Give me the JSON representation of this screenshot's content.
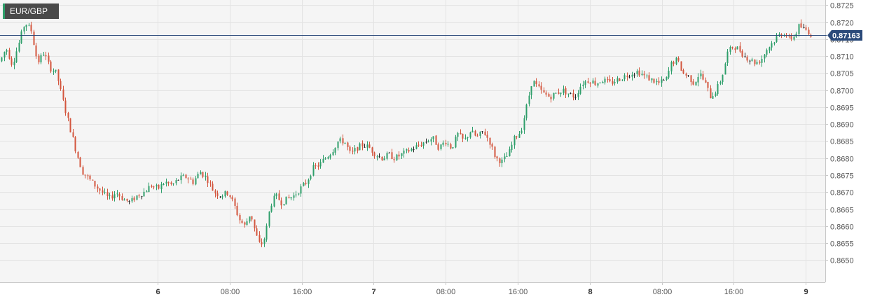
{
  "symbol": "EUR/GBP",
  "current_price_label": "0.87163",
  "colors": {
    "up": "#2e9e6a",
    "down": "#d3553d",
    "neutral": "#222222",
    "price_line": "#2b4a7a"
  },
  "chart_data": {
    "type": "candlestick",
    "title": "EUR/GBP",
    "current_price": 0.87163,
    "ylim": [
      0.86435,
      0.87265
    ],
    "y_ticks": [
      "0.8725",
      "0.8720",
      "0.8715",
      "0.8710",
      "0.8705",
      "0.8700",
      "0.8695",
      "0.8690",
      "0.8685",
      "0.8680",
      "0.8675",
      "0.8670",
      "0.8665",
      "0.8660",
      "0.8655",
      "0.8650"
    ],
    "x_ticks": [
      {
        "label": "6",
        "day": true
      },
      {
        "label": "08:00",
        "day": false
      },
      {
        "label": "16:00",
        "day": false
      },
      {
        "label": "7",
        "day": true
      },
      {
        "label": "08:00",
        "day": false
      },
      {
        "label": "16:00",
        "day": false
      },
      {
        "label": "8",
        "day": true
      },
      {
        "label": "08:00",
        "day": false
      },
      {
        "label": "16:00",
        "day": false
      },
      {
        "label": "9",
        "day": true
      }
    ],
    "grid": true,
    "interval": "15m",
    "path": [
      [
        0,
        0.87085
      ],
      [
        8,
        0.87125
      ],
      [
        17,
        0.87075
      ],
      [
        26,
        0.87135
      ],
      [
        35,
        0.872
      ],
      [
        44,
        0.87175
      ],
      [
        53,
        0.8708
      ],
      [
        62,
        0.8711
      ],
      [
        71,
        0.87065
      ],
      [
        80,
        0.8705
      ],
      [
        89,
        0.8697
      ],
      [
        98,
        0.869
      ],
      [
        108,
        0.8682
      ],
      [
        117,
        0.8676
      ],
      [
        126,
        0.8674
      ],
      [
        135,
        0.8672
      ],
      [
        145,
        0.867
      ],
      [
        155,
        0.8668
      ],
      [
        165,
        0.867
      ],
      [
        175,
        0.8668
      ],
      [
        185,
        0.8667
      ],
      [
        195,
        0.8669
      ],
      [
        205,
        0.867
      ],
      [
        215,
        0.8672
      ],
      [
        225,
        0.8671
      ],
      [
        235,
        0.8673
      ],
      [
        245,
        0.8672
      ],
      [
        255,
        0.8674
      ],
      [
        265,
        0.86745
      ],
      [
        275,
        0.8673
      ],
      [
        285,
        0.8676
      ],
      [
        295,
        0.8674
      ],
      [
        305,
        0.867
      ],
      [
        315,
        0.8669
      ],
      [
        325,
        0.867
      ],
      [
        333,
        0.86665
      ],
      [
        341,
        0.8662
      ],
      [
        349,
        0.866
      ],
      [
        357,
        0.8664
      ],
      [
        364,
        0.8658
      ],
      [
        371,
        0.8654
      ],
      [
        378,
        0.8657
      ],
      [
        385,
        0.8666
      ],
      [
        393,
        0.8669
      ],
      [
        401,
        0.8667
      ],
      [
        410,
        0.8668
      ],
      [
        419,
        0.8669
      ],
      [
        428,
        0.8671
      ],
      [
        437,
        0.8673
      ],
      [
        446,
        0.8677
      ],
      [
        455,
        0.8678
      ],
      [
        464,
        0.868
      ],
      [
        473,
        0.8682
      ],
      [
        482,
        0.8685
      ],
      [
        491,
        0.8685
      ],
      [
        500,
        0.8681
      ],
      [
        509,
        0.8683
      ],
      [
        518,
        0.8684
      ],
      [
        527,
        0.8683
      ],
      [
        536,
        0.8681
      ],
      [
        545,
        0.868
      ],
      [
        554,
        0.8681
      ],
      [
        563,
        0.868
      ],
      [
        572,
        0.8681
      ],
      [
        581,
        0.8682
      ],
      [
        590,
        0.8683
      ],
      [
        599,
        0.8684
      ],
      [
        608,
        0.8685
      ],
      [
        617,
        0.8686
      ],
      [
        626,
        0.8683
      ],
      [
        635,
        0.8685
      ],
      [
        644,
        0.8683
      ],
      [
        653,
        0.8687
      ],
      [
        662,
        0.8685
      ],
      [
        671,
        0.8688
      ],
      [
        680,
        0.8686
      ],
      [
        689,
        0.8688
      ],
      [
        698,
        0.8685
      ],
      [
        707,
        0.868
      ],
      [
        716,
        0.8679
      ],
      [
        725,
        0.8681
      ],
      [
        734,
        0.8686
      ],
      [
        743,
        0.8688
      ],
      [
        752,
        0.8696
      ],
      [
        759,
        0.8703
      ],
      [
        766,
        0.8701
      ],
      [
        775,
        0.8699
      ],
      [
        784,
        0.8698
      ],
      [
        793,
        0.8699
      ],
      [
        802,
        0.87
      ],
      [
        811,
        0.8699
      ],
      [
        820,
        0.8698
      ],
      [
        830,
        0.8702
      ],
      [
        840,
        0.8703
      ],
      [
        850,
        0.8702
      ],
      [
        860,
        0.8703
      ],
      [
        870,
        0.8702
      ],
      [
        880,
        0.8703
      ],
      [
        890,
        0.8704
      ],
      [
        900,
        0.8705
      ],
      [
        910,
        0.87055
      ],
      [
        920,
        0.8704
      ],
      [
        930,
        0.8703
      ],
      [
        940,
        0.8702
      ],
      [
        950,
        0.8703
      ],
      [
        958,
        0.8708
      ],
      [
        966,
        0.8709
      ],
      [
        974,
        0.8705
      ],
      [
        982,
        0.8704
      ],
      [
        990,
        0.8702
      ],
      [
        998,
        0.8705
      ],
      [
        1006,
        0.8702
      ],
      [
        1014,
        0.8698
      ],
      [
        1022,
        0.87
      ],
      [
        1030,
        0.8704
      ],
      [
        1038,
        0.8711
      ],
      [
        1046,
        0.8713
      ],
      [
        1054,
        0.8712
      ],
      [
        1062,
        0.871
      ],
      [
        1070,
        0.8709
      ],
      [
        1078,
        0.8708
      ],
      [
        1086,
        0.8709
      ],
      [
        1094,
        0.8712
      ],
      [
        1102,
        0.8714
      ],
      [
        1110,
        0.8716
      ],
      [
        1118,
        0.8717
      ],
      [
        1126,
        0.8715
      ],
      [
        1134,
        0.8716
      ],
      [
        1140,
        0.8719
      ],
      [
        1146,
        0.8718
      ],
      [
        1152,
        0.87175
      ],
      [
        1157,
        0.87163
      ]
    ]
  }
}
